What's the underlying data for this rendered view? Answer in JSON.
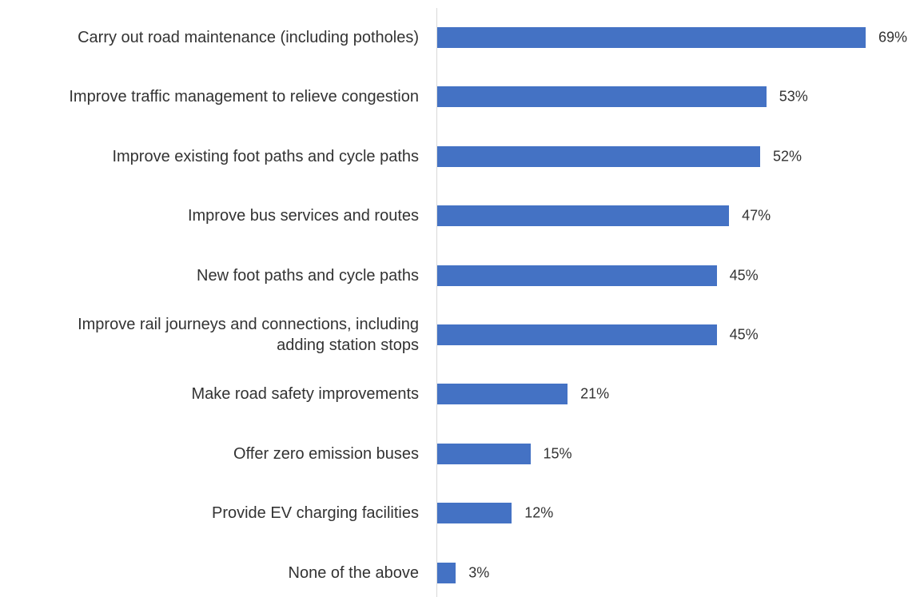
{
  "chart_data": {
    "type": "bar",
    "orientation": "horizontal",
    "categories": [
      "Carry out road maintenance (including potholes)",
      "Improve traffic management to relieve congestion",
      "Improve existing foot paths and cycle paths",
      "Improve bus services and routes",
      "New foot paths and cycle paths",
      "Improve rail journeys and connections, including\nadding station stops",
      "Make road safety improvements",
      "Offer zero emission buses",
      "Provide EV charging facilities",
      "None of the above"
    ],
    "values": [
      69,
      53,
      52,
      47,
      45,
      45,
      21,
      15,
      12,
      3
    ],
    "value_labels": [
      "69%",
      "53%",
      "52%",
      "47%",
      "45%",
      "45%",
      "21%",
      "15%",
      "12%",
      "3%"
    ],
    "color": "#4472c4"
  }
}
